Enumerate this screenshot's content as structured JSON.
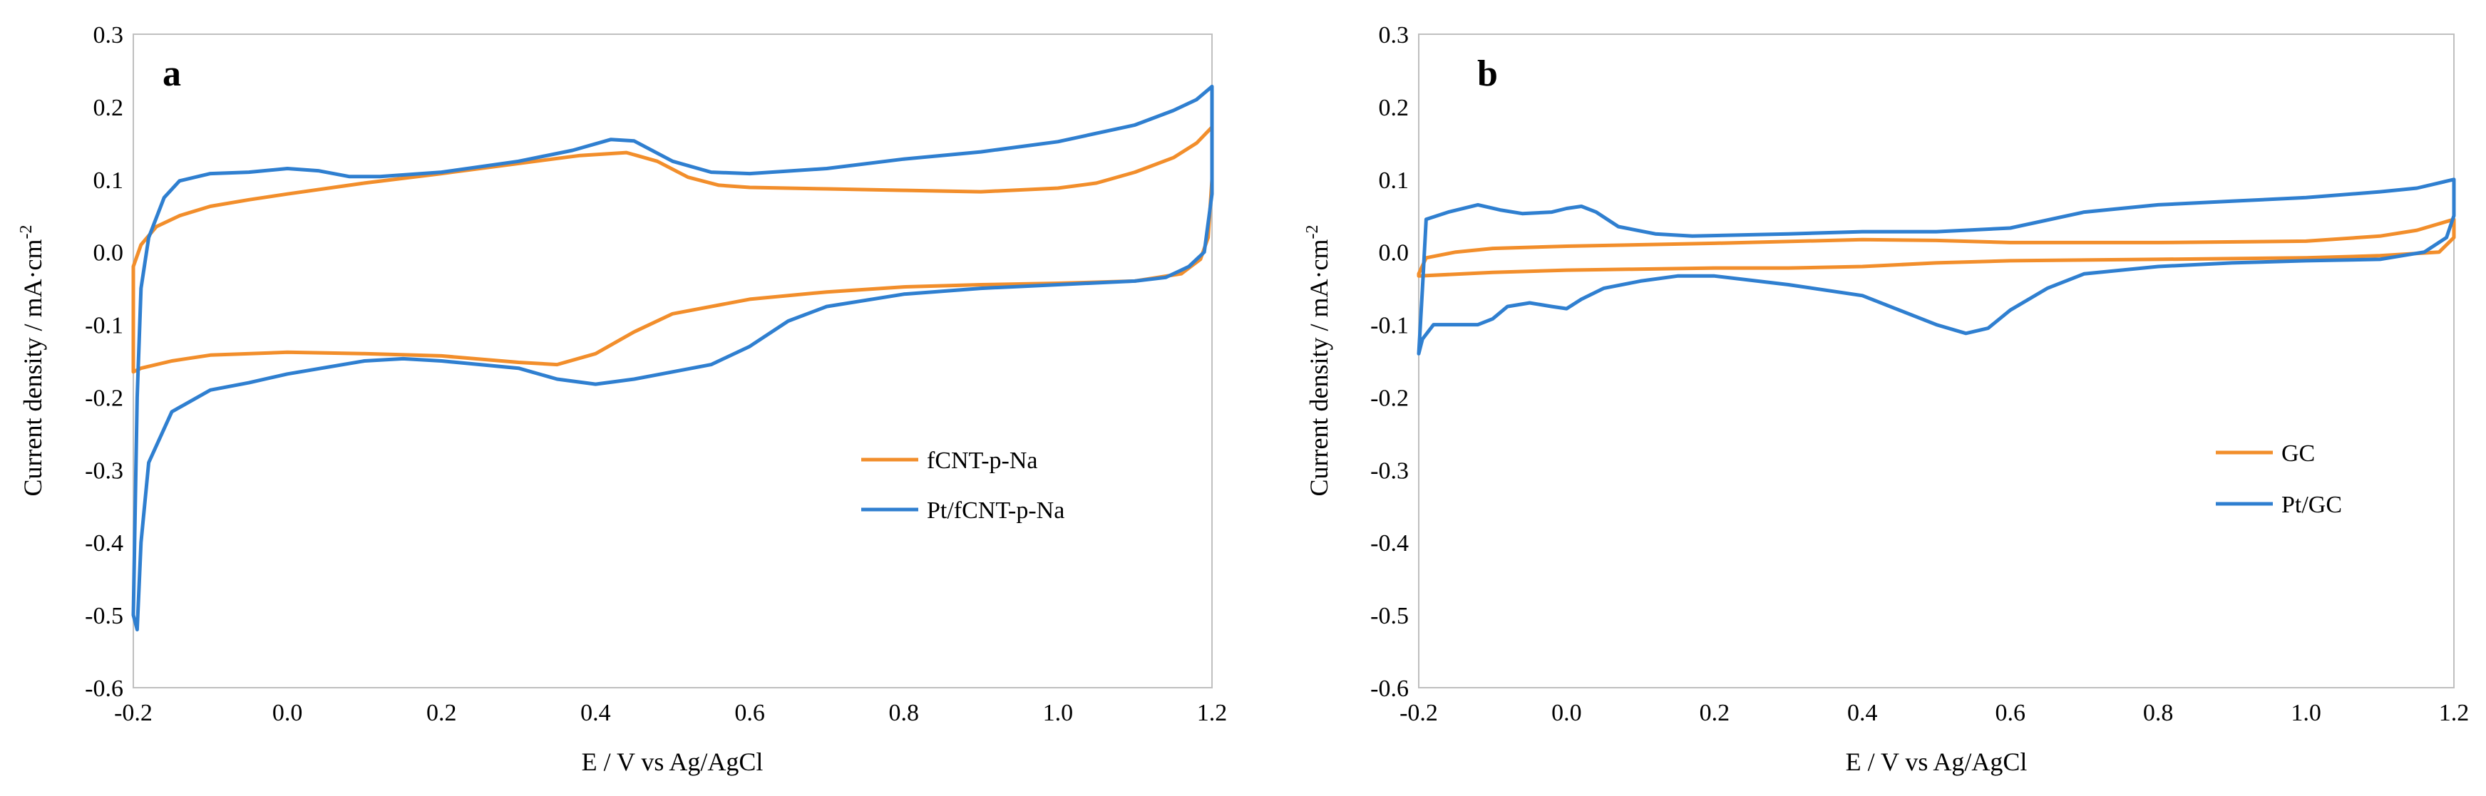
{
  "figure": {
    "panels": [
      {
        "panel_label": "a",
        "xlabel": "E / V vs Ag/AgCl",
        "ylabel": "Current density / mA·cm",
        "ylabel_sup": "-2",
        "x_ticks": [
          "-0.2",
          "0.0",
          "0.2",
          "0.4",
          "0.6",
          "0.8",
          "1.0",
          "1.2"
        ],
        "y_ticks": [
          "0.3",
          "0.2",
          "0.1",
          "0.0",
          "-0.1",
          "-0.2",
          "-0.3",
          "-0.4",
          "-0.5",
          "-0.6"
        ],
        "legend": [
          "fCNT-p-Na",
          "Pt/fCNT-p-Na"
        ]
      },
      {
        "panel_label": "b",
        "xlabel": "E / V vs Ag/AgCl",
        "ylabel": "Current density / mA·cm",
        "ylabel_sup": "-2",
        "x_ticks": [
          "-0.2",
          "0.0",
          "0.2",
          "0.4",
          "0.6",
          "0.8",
          "1.0",
          "1.2"
        ],
        "y_ticks": [
          "0.3",
          "0.2",
          "0.1",
          "0.0",
          "-0.1",
          "-0.2",
          "-0.3",
          "-0.4",
          "-0.5",
          "-0.6"
        ],
        "legend": [
          "GC",
          "Pt/GC"
        ]
      }
    ]
  },
  "chart_data": [
    {
      "type": "line",
      "title": "a",
      "xlabel": "E / V vs Ag/AgCl",
      "ylabel": "Current density / mA·cm-2",
      "xlim": [
        -0.2,
        1.2
      ],
      "ylim": [
        -0.6,
        0.3
      ],
      "grid": false,
      "legend_position": "right",
      "series": [
        {
          "name": "fCNT-p-Na",
          "color": "#F28E2B",
          "points": [
            [
              -0.2,
              -0.02
            ],
            [
              -0.19,
              0.01
            ],
            [
              -0.17,
              0.035
            ],
            [
              -0.14,
              0.05
            ],
            [
              -0.1,
              0.063
            ],
            [
              -0.05,
              0.072
            ],
            [
              0.0,
              0.08
            ],
            [
              0.1,
              0.095
            ],
            [
              0.2,
              0.108
            ],
            [
              0.3,
              0.122
            ],
            [
              0.38,
              0.133
            ],
            [
              0.44,
              0.137
            ],
            [
              0.48,
              0.125
            ],
            [
              0.52,
              0.103
            ],
            [
              0.56,
              0.092
            ],
            [
              0.6,
              0.089
            ],
            [
              0.7,
              0.087
            ],
            [
              0.8,
              0.085
            ],
            [
              0.9,
              0.083
            ],
            [
              1.0,
              0.088
            ],
            [
              1.05,
              0.095
            ],
            [
              1.1,
              0.11
            ],
            [
              1.15,
              0.13
            ],
            [
              1.18,
              0.15
            ],
            [
              1.2,
              0.172
            ],
            [
              1.2,
              0.1
            ],
            [
              1.195,
              0.02
            ],
            [
              1.185,
              -0.01
            ],
            [
              1.16,
              -0.03
            ],
            [
              1.1,
              -0.04
            ],
            [
              1.0,
              -0.043
            ],
            [
              0.9,
              -0.045
            ],
            [
              0.8,
              -0.048
            ],
            [
              0.7,
              -0.055
            ],
            [
              0.6,
              -0.065
            ],
            [
              0.5,
              -0.085
            ],
            [
              0.45,
              -0.11
            ],
            [
              0.4,
              -0.14
            ],
            [
              0.35,
              -0.155
            ],
            [
              0.3,
              -0.152
            ],
            [
              0.2,
              -0.143
            ],
            [
              0.1,
              -0.14
            ],
            [
              0.0,
              -0.138
            ],
            [
              -0.1,
              -0.142
            ],
            [
              -0.15,
              -0.15
            ],
            [
              -0.19,
              -0.16
            ],
            [
              -0.2,
              -0.165
            ],
            [
              -0.2,
              -0.02
            ]
          ]
        },
        {
          "name": "Pt/fCNT-p-Na",
          "color": "#2F7FD0",
          "points": [
            [
              -0.2,
              -0.5
            ],
            [
              -0.195,
              -0.2
            ],
            [
              -0.19,
              -0.05
            ],
            [
              -0.18,
              0.02
            ],
            [
              -0.16,
              0.075
            ],
            [
              -0.14,
              0.098
            ],
            [
              -0.1,
              0.108
            ],
            [
              -0.05,
              0.11
            ],
            [
              0.0,
              0.115
            ],
            [
              0.04,
              0.112
            ],
            [
              0.08,
              0.104
            ],
            [
              0.12,
              0.104
            ],
            [
              0.2,
              0.11
            ],
            [
              0.3,
              0.125
            ],
            [
              0.37,
              0.14
            ],
            [
              0.42,
              0.155
            ],
            [
              0.45,
              0.153
            ],
            [
              0.5,
              0.125
            ],
            [
              0.55,
              0.11
            ],
            [
              0.6,
              0.108
            ],
            [
              0.7,
              0.115
            ],
            [
              0.8,
              0.128
            ],
            [
              0.9,
              0.138
            ],
            [
              1.0,
              0.152
            ],
            [
              1.1,
              0.175
            ],
            [
              1.15,
              0.195
            ],
            [
              1.18,
              0.21
            ],
            [
              1.2,
              0.228
            ],
            [
              1.2,
              0.08
            ],
            [
              1.19,
              0.0
            ],
            [
              1.17,
              -0.02
            ],
            [
              1.14,
              -0.035
            ],
            [
              1.1,
              -0.04
            ],
            [
              1.0,
              -0.045
            ],
            [
              0.9,
              -0.05
            ],
            [
              0.8,
              -0.058
            ],
            [
              0.7,
              -0.075
            ],
            [
              0.65,
              -0.095
            ],
            [
              0.6,
              -0.13
            ],
            [
              0.55,
              -0.155
            ],
            [
              0.5,
              -0.165
            ],
            [
              0.45,
              -0.175
            ],
            [
              0.4,
              -0.182
            ],
            [
              0.35,
              -0.175
            ],
            [
              0.3,
              -0.16
            ],
            [
              0.2,
              -0.15
            ],
            [
              0.15,
              -0.147
            ],
            [
              0.1,
              -0.15
            ],
            [
              0.0,
              -0.168
            ],
            [
              -0.05,
              -0.18
            ],
            [
              -0.1,
              -0.19
            ],
            [
              -0.15,
              -0.22
            ],
            [
              -0.18,
              -0.29
            ],
            [
              -0.19,
              -0.4
            ],
            [
              -0.195,
              -0.52
            ],
            [
              -0.2,
              -0.5
            ]
          ]
        }
      ]
    },
    {
      "type": "line",
      "title": "b",
      "xlabel": "E / V vs Ag/AgCl",
      "ylabel": "Current density / mA·cm-2",
      "xlim": [
        -0.2,
        1.2
      ],
      "ylim": [
        -0.6,
        0.3
      ],
      "grid": false,
      "legend_position": "right",
      "series": [
        {
          "name": "GC",
          "color": "#F28E2B",
          "points": [
            [
              -0.2,
              -0.03
            ],
            [
              -0.19,
              -0.008
            ],
            [
              -0.15,
              0.0
            ],
            [
              -0.1,
              0.005
            ],
            [
              0.0,
              0.008
            ],
            [
              0.2,
              0.012
            ],
            [
              0.4,
              0.017
            ],
            [
              0.5,
              0.016
            ],
            [
              0.6,
              0.013
            ],
            [
              0.8,
              0.013
            ],
            [
              1.0,
              0.015
            ],
            [
              1.1,
              0.022
            ],
            [
              1.15,
              0.03
            ],
            [
              1.2,
              0.045
            ],
            [
              1.2,
              0.02
            ],
            [
              1.18,
              0.0
            ],
            [
              1.1,
              -0.005
            ],
            [
              1.0,
              -0.008
            ],
            [
              0.8,
              -0.01
            ],
            [
              0.6,
              -0.012
            ],
            [
              0.5,
              -0.015
            ],
            [
              0.4,
              -0.02
            ],
            [
              0.3,
              -0.022
            ],
            [
              0.2,
              -0.022
            ],
            [
              0.0,
              -0.025
            ],
            [
              -0.1,
              -0.028
            ],
            [
              -0.2,
              -0.033
            ],
            [
              -0.2,
              -0.03
            ]
          ]
        },
        {
          "name": "Pt/GC",
          "color": "#2F7FD0",
          "points": [
            [
              -0.2,
              -0.14
            ],
            [
              -0.195,
              -0.05
            ],
            [
              -0.19,
              0.045
            ],
            [
              -0.16,
              0.055
            ],
            [
              -0.12,
              0.065
            ],
            [
              -0.09,
              0.058
            ],
            [
              -0.06,
              0.053
            ],
            [
              -0.02,
              0.055
            ],
            [
              0.0,
              0.06
            ],
            [
              0.02,
              0.063
            ],
            [
              0.04,
              0.055
            ],
            [
              0.07,
              0.035
            ],
            [
              0.12,
              0.025
            ],
            [
              0.17,
              0.022
            ],
            [
              0.3,
              0.025
            ],
            [
              0.4,
              0.028
            ],
            [
              0.5,
              0.028
            ],
            [
              0.6,
              0.033
            ],
            [
              0.7,
              0.055
            ],
            [
              0.8,
              0.065
            ],
            [
              0.9,
              0.07
            ],
            [
              1.0,
              0.075
            ],
            [
              1.1,
              0.083
            ],
            [
              1.15,
              0.088
            ],
            [
              1.2,
              0.1
            ],
            [
              1.2,
              0.05
            ],
            [
              1.19,
              0.02
            ],
            [
              1.16,
              0.0
            ],
            [
              1.1,
              -0.01
            ],
            [
              1.0,
              -0.012
            ],
            [
              0.9,
              -0.015
            ],
            [
              0.8,
              -0.02
            ],
            [
              0.7,
              -0.03
            ],
            [
              0.65,
              -0.05
            ],
            [
              0.6,
              -0.08
            ],
            [
              0.57,
              -0.105
            ],
            [
              0.54,
              -0.112
            ],
            [
              0.5,
              -0.1
            ],
            [
              0.45,
              -0.08
            ],
            [
              0.4,
              -0.06
            ],
            [
              0.3,
              -0.045
            ],
            [
              0.2,
              -0.033
            ],
            [
              0.15,
              -0.033
            ],
            [
              0.1,
              -0.04
            ],
            [
              0.05,
              -0.05
            ],
            [
              0.02,
              -0.065
            ],
            [
              0.0,
              -0.078
            ],
            [
              -0.02,
              -0.075
            ],
            [
              -0.05,
              -0.07
            ],
            [
              -0.08,
              -0.075
            ],
            [
              -0.1,
              -0.092
            ],
            [
              -0.12,
              -0.1
            ],
            [
              -0.15,
              -0.1
            ],
            [
              -0.18,
              -0.1
            ],
            [
              -0.195,
              -0.12
            ],
            [
              -0.2,
              -0.14
            ]
          ]
        }
      ]
    }
  ]
}
